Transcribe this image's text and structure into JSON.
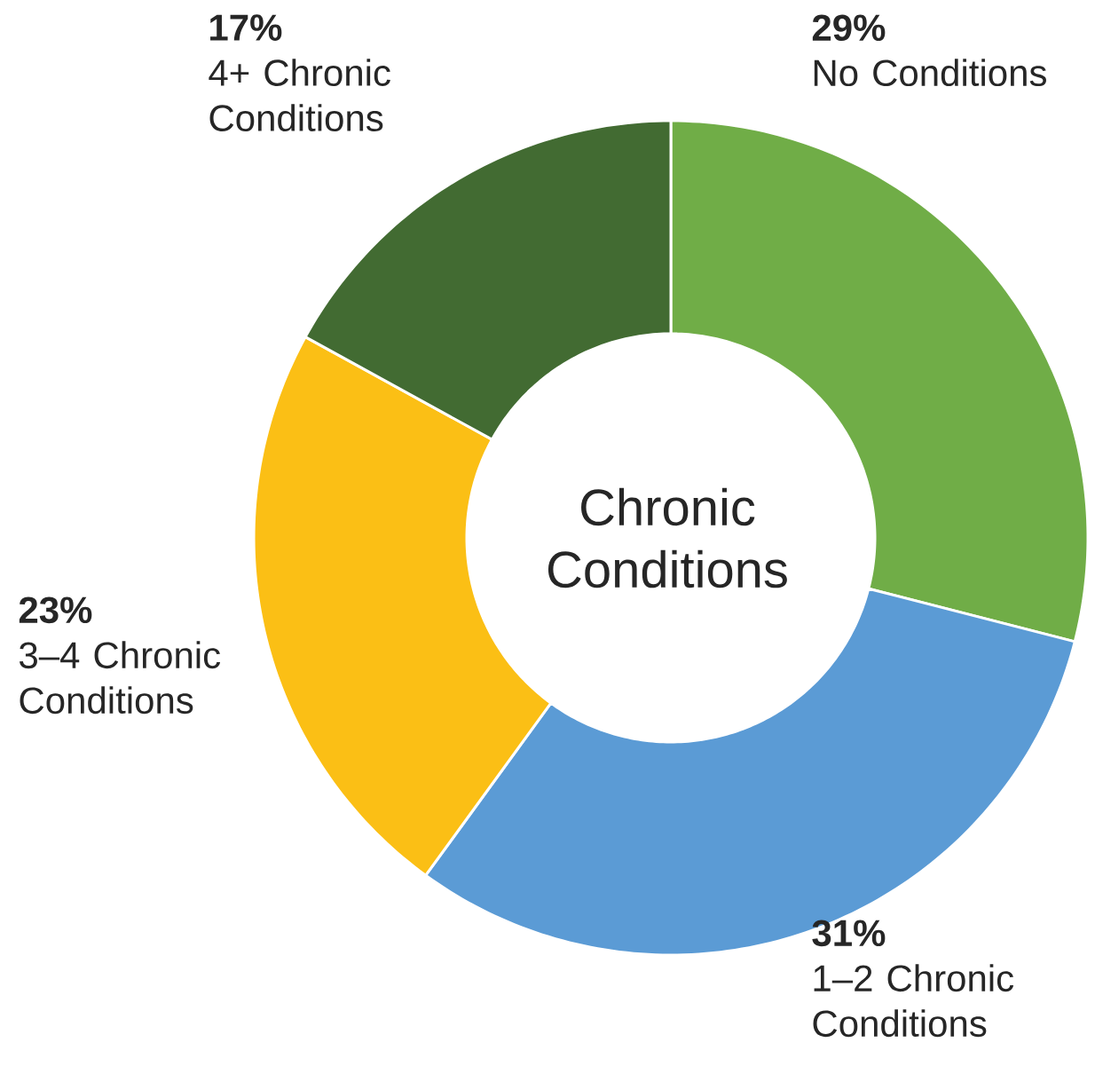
{
  "chart_data": {
    "type": "donut",
    "title": "Chronic Conditions",
    "categories": [
      "No Conditions",
      "1–2 Chronic Conditions",
      "3–4 Chronic Conditions",
      "4+ Chronic Conditions"
    ],
    "values": [
      29,
      31,
      23,
      17
    ],
    "value_labels": [
      "29%",
      "31%",
      "23%",
      "17%"
    ],
    "colors": [
      "#70ad47",
      "#5b9bd5",
      "#fbbf15",
      "#426b32"
    ]
  }
}
